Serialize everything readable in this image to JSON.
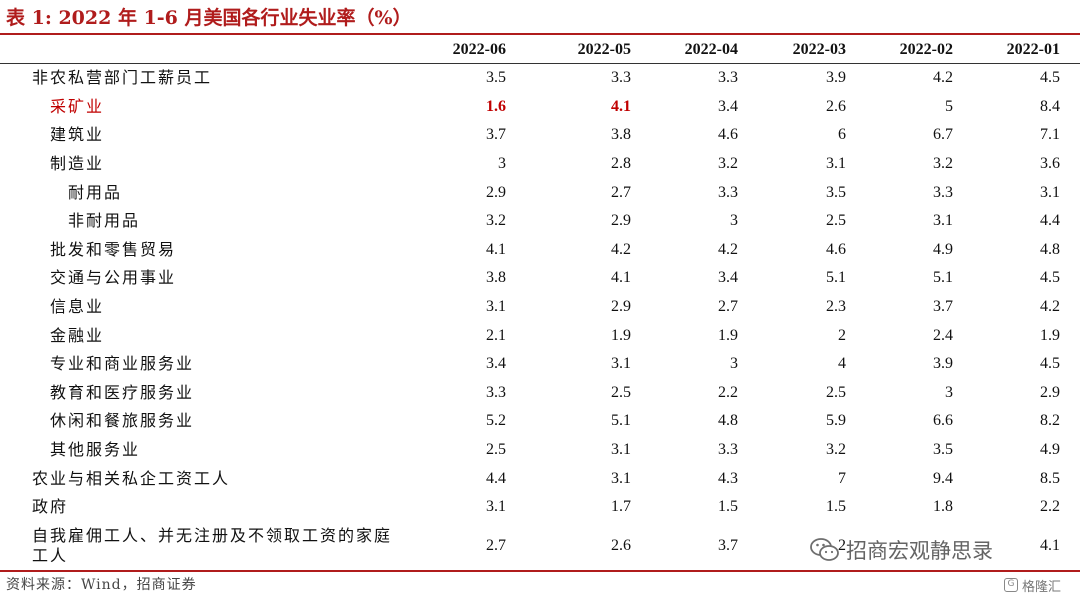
{
  "title": "表 1:  2022 年 1-6 月美国各行业失业率（%）",
  "columns": [
    "2022-06",
    "2022-05",
    "2022-04",
    "2022-03",
    "2022-02",
    "2022-01"
  ],
  "rows": [
    {
      "label": "非农私营部门工薪员工",
      "values": [
        "3.5",
        "3.3",
        "3.3",
        "3.9",
        "4.2",
        "4.5"
      ]
    },
    {
      "label": "采矿业",
      "values": [
        "1.6",
        "4.1",
        "3.4",
        "2.6",
        "5",
        "8.4"
      ]
    },
    {
      "label": "建筑业",
      "values": [
        "3.7",
        "3.8",
        "4.6",
        "6",
        "6.7",
        "7.1"
      ]
    },
    {
      "label": "制造业",
      "values": [
        "3",
        "2.8",
        "3.2",
        "3.1",
        "3.2",
        "3.6"
      ]
    },
    {
      "label": "耐用品",
      "values": [
        "2.9",
        "2.7",
        "3.3",
        "3.5",
        "3.3",
        "3.1"
      ]
    },
    {
      "label": "非耐用品",
      "values": [
        "3.2",
        "2.9",
        "3",
        "2.5",
        "3.1",
        "4.4"
      ]
    },
    {
      "label": "批发和零售贸易",
      "values": [
        "4.1",
        "4.2",
        "4.2",
        "4.6",
        "4.9",
        "4.8"
      ]
    },
    {
      "label": "交通与公用事业",
      "values": [
        "3.8",
        "4.1",
        "3.4",
        "5.1",
        "5.1",
        "4.5"
      ]
    },
    {
      "label": "信息业",
      "values": [
        "3.1",
        "2.9",
        "2.7",
        "2.3",
        "3.7",
        "4.2"
      ]
    },
    {
      "label": "金融业",
      "values": [
        "2.1",
        "1.9",
        "1.9",
        "2",
        "2.4",
        "1.9"
      ]
    },
    {
      "label": "专业和商业服务业",
      "values": [
        "3.4",
        "3.1",
        "3",
        "4",
        "3.9",
        "4.5"
      ]
    },
    {
      "label": "教育和医疗服务业",
      "values": [
        "3.3",
        "2.5",
        "2.2",
        "2.5",
        "3",
        "2.9"
      ]
    },
    {
      "label": "休闲和餐旅服务业",
      "values": [
        "5.2",
        "5.1",
        "4.8",
        "5.9",
        "6.6",
        "8.2"
      ]
    },
    {
      "label": "其他服务业",
      "values": [
        "2.5",
        "3.1",
        "3.3",
        "3.2",
        "3.5",
        "4.9"
      ]
    },
    {
      "label": "农业与相关私企工资工人",
      "values": [
        "4.4",
        "3.1",
        "4.3",
        "7",
        "9.4",
        "8.5"
      ]
    },
    {
      "label": "政府",
      "values": [
        "3.1",
        "1.7",
        "1.5",
        "1.5",
        "1.8",
        "2.2"
      ]
    },
    {
      "label": "自我雇佣工人、并无注册及不领取工资的家庭工人",
      "values": [
        "2.7",
        "2.6",
        "3.7",
        "2",
        "",
        "4.1"
      ]
    }
  ],
  "source": "资料来源：Wind，招商证券",
  "watermark": "招商宏观静思录",
  "watermark_badge": "格隆汇",
  "colors": {
    "accent": "#b01c1c",
    "highlight": "#c00000"
  }
}
